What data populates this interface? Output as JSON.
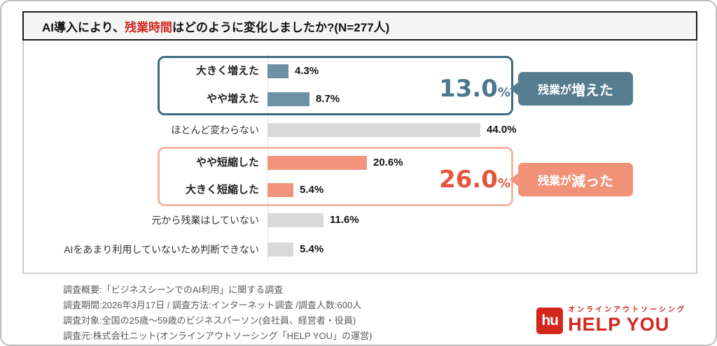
{
  "title": {
    "prefix": "AI導入により、",
    "highlight": "残業時間",
    "suffix": "はどのように変化しましたか?(N=277人)",
    "highlight_color": "#d0281e"
  },
  "chart_data": {
    "type": "bar",
    "orientation": "horizontal",
    "title": "AI導入により、残業時間はどのように変化しましたか?(N=277人)",
    "n": "N=277人",
    "unit": "%",
    "xlim": [
      0,
      50
    ],
    "grid": false,
    "categories": [
      "大きく増えた",
      "やや増えた",
      "ほとんど変わらない",
      "やや短縮した",
      "大きく短縮した",
      "元から残業はしていない",
      "AIをあまり利用していないため判断できない"
    ],
    "values": [
      4.3,
      8.7,
      44.0,
      20.6,
      5.4,
      11.6,
      5.4
    ],
    "rows": [
      {
        "label": "大きく増えた",
        "value": 4.3,
        "value_label": "4.3%",
        "color": "#6e91a5",
        "group": "increase"
      },
      {
        "label": "やや増えた",
        "value": 8.7,
        "value_label": "8.7%",
        "color": "#6e91a5",
        "group": "increase"
      },
      {
        "label": "ほとんど変わらない",
        "value": 44.0,
        "value_label": "44.0%",
        "color": "#d9d9d9",
        "group": "none"
      },
      {
        "label": "やや短縮した",
        "value": 20.6,
        "value_label": "20.6%",
        "color": "#f2937c",
        "group": "decrease"
      },
      {
        "label": "大きく短縮した",
        "value": 5.4,
        "value_label": "5.4%",
        "color": "#f2937c",
        "group": "decrease"
      },
      {
        "label": "元から残業はしていない",
        "value": 11.6,
        "value_label": "11.6%",
        "color": "#d9d9d9",
        "group": "none"
      },
      {
        "label": "AIをあまり利用していないため判断できない",
        "value": 5.4,
        "value_label": "5.4%",
        "color": "#d9d9d9",
        "group": "none"
      }
    ],
    "groups": [
      {
        "id": "increase",
        "total": 13.0,
        "total_label": "13.0",
        "unit": "%",
        "callout_prefix": "残業が",
        "callout_emphasis": "増えた",
        "number_color": "#4d7690",
        "box_border": "#3d6a80",
        "callout_bg": "#567c8f"
      },
      {
        "id": "decrease",
        "total": 26.0,
        "total_label": "26.0",
        "unit": "%",
        "callout_prefix": "残業が",
        "callout_emphasis": "減った",
        "number_color": "#e4553a",
        "box_border": "#f6b4a2",
        "callout_bg": "#f09278"
      }
    ]
  },
  "footer": {
    "lines": [
      "調査概要:「ビジネスシーンでのAI利用」に関する調査",
      "調査期間:2026年3月17日 / 調査方法:インターネット調査 /調査人数:600人",
      "調査対象:全国の25歳〜59歳のビジネスパーソン(会社員、経営者・役員)",
      "調査元:株式会社ニット(オンラインアウトソーシング「HELP YOU」の運営)"
    ],
    "text_color": "#5a5a5a"
  },
  "logo": {
    "tagline": "オンラインアウトソーシング",
    "name": "HELP YOU",
    "mark": "hu",
    "color": "#d3261d"
  }
}
